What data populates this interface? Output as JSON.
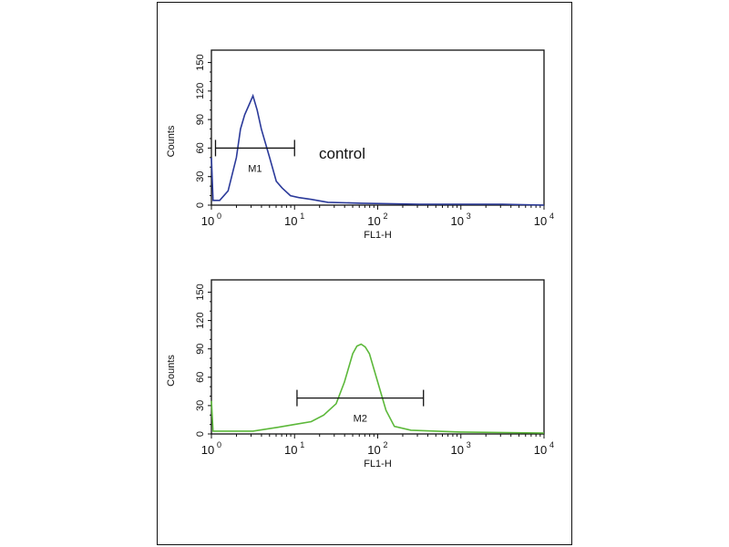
{
  "chart_data": [
    {
      "type": "line",
      "title": "",
      "annotation": "control",
      "xlabel": "FL1-H",
      "ylabel": "Counts",
      "xscale": "log",
      "xlim": [
        1,
        10000
      ],
      "ylim": [
        0,
        163
      ],
      "xticks": [
        {
          "base": "10",
          "exp": "0"
        },
        {
          "base": "10",
          "exp": "1"
        },
        {
          "base": "10",
          "exp": "2"
        },
        {
          "base": "10",
          "exp": "3"
        },
        {
          "base": "10",
          "exp": "4"
        }
      ],
      "yticks": [
        "0",
        "30",
        "60",
        "90",
        "120",
        "150"
      ],
      "color": "#2b3a9a",
      "series_log10x": [
        0,
        0.02,
        0.1,
        0.2,
        0.3,
        0.35,
        0.4,
        0.45,
        0.5,
        0.55,
        0.6,
        0.7,
        0.78,
        0.85,
        0.95,
        1.05,
        1.2,
        1.4,
        1.8,
        2.5,
        3.0,
        3.5,
        4.0
      ],
      "series_y": [
        50,
        5,
        5,
        15,
        50,
        80,
        95,
        105,
        115,
        100,
        80,
        50,
        25,
        18,
        10,
        8,
        6,
        3,
        2,
        1,
        1,
        1,
        0
      ],
      "marker": {
        "label": "M1",
        "from": 1.12,
        "to": 10,
        "y": 60
      }
    },
    {
      "type": "line",
      "title": "",
      "xlabel": "FL1-H",
      "ylabel": "Counts",
      "xscale": "log",
      "xlim": [
        1,
        10000
      ],
      "ylim": [
        0,
        163
      ],
      "xticks": [
        {
          "base": "10",
          "exp": "0"
        },
        {
          "base": "10",
          "exp": "1"
        },
        {
          "base": "10",
          "exp": "2"
        },
        {
          "base": "10",
          "exp": "3"
        },
        {
          "base": "10",
          "exp": "4"
        }
      ],
      "yticks": [
        "0",
        "30",
        "60",
        "90",
        "120",
        "150"
      ],
      "color": "#5cb83a",
      "series_log10x": [
        0,
        0.02,
        0.5,
        0.8,
        1.0,
        1.2,
        1.35,
        1.5,
        1.6,
        1.7,
        1.75,
        1.8,
        1.85,
        1.9,
        2.0,
        2.1,
        2.2,
        2.4,
        3.0,
        4.0
      ],
      "series_y": [
        35,
        3,
        3,
        7,
        10,
        13,
        20,
        32,
        55,
        85,
        93,
        95,
        92,
        85,
        55,
        25,
        8,
        4,
        2,
        1
      ],
      "marker": {
        "label": "M2",
        "from": 10.7,
        "to": 355,
        "y": 38
      }
    }
  ]
}
